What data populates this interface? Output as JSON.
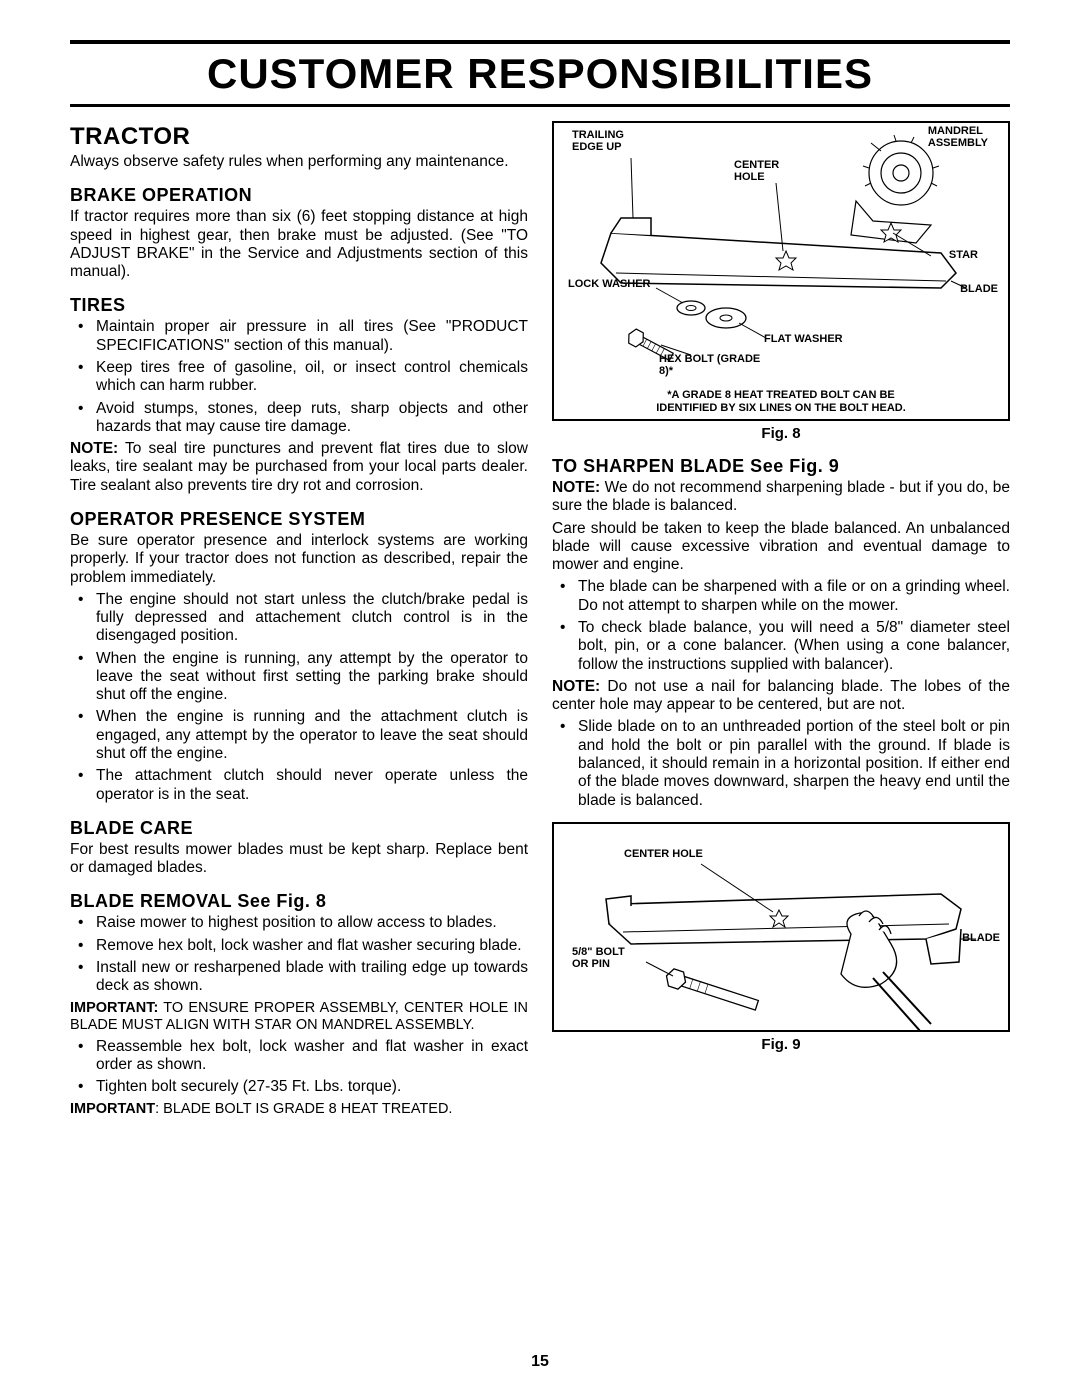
{
  "page_number": "15",
  "main_title": "CUSTOMER RESPONSIBILITIES",
  "left": {
    "tractor": {
      "heading": "TRACTOR",
      "intro": "Always observe safety rules when performing any maintenance."
    },
    "brake": {
      "heading": "BRAKE OPERATION",
      "para": "If tractor requires more than six (6) feet stopping distance at high speed in highest gear, then brake must be adjusted. (See \"TO ADJUST BRAKE\" in the Service and Adjustments section of this manual)."
    },
    "tires": {
      "heading": "TIRES",
      "items": [
        "Maintain proper air pressure in all tires (See \"PRODUCT SPECIFICATIONS\" section of this manual).",
        "Keep tires free of gasoline, oil, or insect control chemicals which can harm rubber.",
        "Avoid stumps, stones, deep ruts, sharp objects and other hazards that may cause tire damage."
      ],
      "note_label": "NOTE:",
      "note": " To seal tire punctures and prevent flat tires due to slow leaks, tire sealant may be purchased from your local parts dealer. Tire sealant also prevents tire dry rot and corrosion."
    },
    "ops": {
      "heading": "OPERATOR PRESENCE SYSTEM",
      "para": "Be sure operator presence and interlock systems are working properly. If your tractor does not function as described, repair the problem immediately.",
      "items": [
        "The engine should not start unless the clutch/brake pedal is fully depressed and attachement clutch control is in the disengaged position.",
        "When the engine is running, any attempt by the operator to leave the seat without first setting the parking brake should shut off the engine.",
        "When the engine is running and the attachment clutch is engaged, any attempt by the operator to leave the seat should shut off the engine.",
        "The attachment clutch should never operate unless the operator is in the seat."
      ]
    },
    "blade_care": {
      "heading": "BLADE CARE",
      "para": "For best results mower blades must be kept sharp. Replace bent or damaged blades."
    },
    "blade_removal": {
      "heading": "BLADE REMOVAL See Fig. 8",
      "items1": [
        "Raise mower to highest position to allow access to blades.",
        "Remove hex bolt, lock washer and flat washer securing blade.",
        "Install new or resharpened blade with trailing edge up towards deck as shown."
      ],
      "imp1_label": "IMPORTANT:",
      "imp1": " TO ENSURE PROPER ASSEMBLY, CENTER HOLE IN BLADE MUST ALIGN WITH STAR ON MANDREL ASSEMBLY.",
      "items2": [
        "Reassemble hex bolt, lock washer and flat washer in exact order as shown.",
        "Tighten bolt securely (27-35 Ft. Lbs. torque)."
      ],
      "imp2_label": "IMPORTANT",
      "imp2": ": BLADE BOLT IS GRADE 8 HEAT TREATED."
    }
  },
  "right": {
    "fig8": {
      "caption": "Fig. 8",
      "labels": {
        "trailing": "TRAILING\nEDGE UP",
        "mandrel": "MANDREL\nASSEMBLY",
        "center": "CENTER\nHOLE",
        "lock": "LOCK WASHER",
        "star": "STAR",
        "blade": "BLADE",
        "flat": "FLAT WASHER",
        "hex": "HEX BOLT (GRADE\n8)*"
      },
      "note": "*A GRADE 8 HEAT TREATED BOLT CAN BE\nIDENTIFIED BY SIX LINES ON THE BOLT HEAD."
    },
    "sharpen": {
      "heading": "TO SHARPEN BLADE See Fig. 9",
      "note1_label": "NOTE:",
      "note1": " We do not recommend sharpening blade - but if you do, be sure the blade is balanced.",
      "para": "Care should be taken to keep the blade balanced. An unbalanced blade will cause excessive vibration and eventual damage to mower and engine.",
      "items1": [
        "The blade can be sharpened with a file or on a grinding wheel. Do not attempt to sharpen while on the mower.",
        "To check blade balance, you will need a 5/8\" diameter steel bolt, pin, or a cone balancer. (When using a cone balancer, follow the instructions supplied with balancer)."
      ],
      "note2_label": "NOTE:",
      "note2": " Do not use a nail for balancing blade. The lobes of the center hole may appear to be centered, but are not.",
      "items2": [
        "Slide blade on to an unthreaded portion of the steel bolt or pin and hold the bolt or pin parallel with the ground. If blade is balanced, it should remain in a horizontal position. If either end of the blade moves downward, sharpen the heavy end until the blade is balanced."
      ]
    },
    "fig9": {
      "caption": "Fig. 9",
      "labels": {
        "center": "CENTER HOLE",
        "bolt": "5/8\" BOLT\nOR PIN",
        "blade": "BLADE"
      }
    }
  }
}
